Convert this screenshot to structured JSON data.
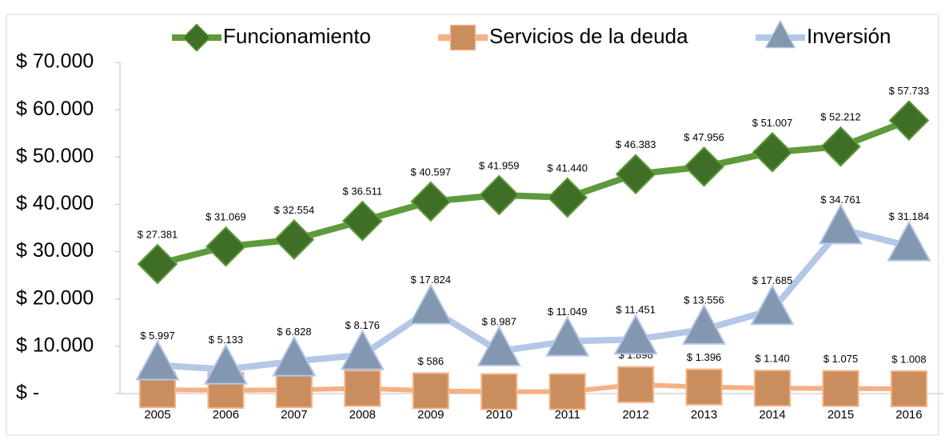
{
  "chart_data": {
    "type": "line",
    "categories": [
      "2005",
      "2006",
      "2007",
      "2008",
      "2009",
      "2010",
      "2011",
      "2012",
      "2013",
      "2014",
      "2015",
      "2016"
    ],
    "series": [
      {
        "name": "Funcionamiento",
        "color": "#5e9a3c",
        "marker_color": "#3f6f26",
        "values": [
          27381,
          31069,
          32554,
          36511,
          40597,
          41959,
          41440,
          46383,
          47956,
          51007,
          52212,
          57733
        ],
        "value_labels": [
          "$ 27.381",
          "$ 31.069",
          "$ 32.554",
          "$ 36.511",
          "$ 40.597",
          "$ 41.959",
          "$ 41.440",
          "$ 46.383",
          "$ 47.956",
          "$ 51.007",
          "$ 52.212",
          "$ 57.733"
        ]
      },
      {
        "name": "Servicios de la deuda",
        "color": "#f4b183",
        "marker_color": "#c98d5e",
        "values": [
          800,
          700,
          800,
          1100,
          586,
          400,
          400,
          1898,
          1396,
          1140,
          1075,
          1008
        ],
        "value_labels": [
          null,
          null,
          null,
          null,
          "$ 586",
          null,
          null,
          "$ 1.898",
          "$ 1.396",
          "$ 1.140",
          "$ 1.075",
          "$ 1.008"
        ]
      },
      {
        "name": "Inversión",
        "color": "#b4c7e7",
        "marker_color": "#8497b0",
        "values": [
          5997,
          5133,
          6828,
          8176,
          17824,
          8987,
          11049,
          11451,
          13556,
          17685,
          34761,
          31184
        ],
        "value_labels": [
          "$ 5.997",
          "$ 5.133",
          "$ 6.828",
          "$ 8.176",
          "$ 17.824",
          "$ 8.987",
          "$ 11.049",
          "$ 11.451",
          "$ 13.556",
          "$ 17.685",
          "$ 34.761",
          "$ 31.184"
        ]
      }
    ],
    "ylim": [
      0,
      70000
    ],
    "yticks": [
      {
        "value": 0,
        "label": "$ -"
      },
      {
        "value": 10000,
        "label": "$ 10.000"
      },
      {
        "value": 20000,
        "label": "$ 20.000"
      },
      {
        "value": 30000,
        "label": "$ 30.000"
      },
      {
        "value": 40000,
        "label": "$ 40.000"
      },
      {
        "value": 50000,
        "label": "$ 50.000"
      },
      {
        "value": 60000,
        "label": "$ 60.000"
      },
      {
        "value": 70000,
        "label": "$ 70.000"
      }
    ],
    "legend": "top"
  }
}
